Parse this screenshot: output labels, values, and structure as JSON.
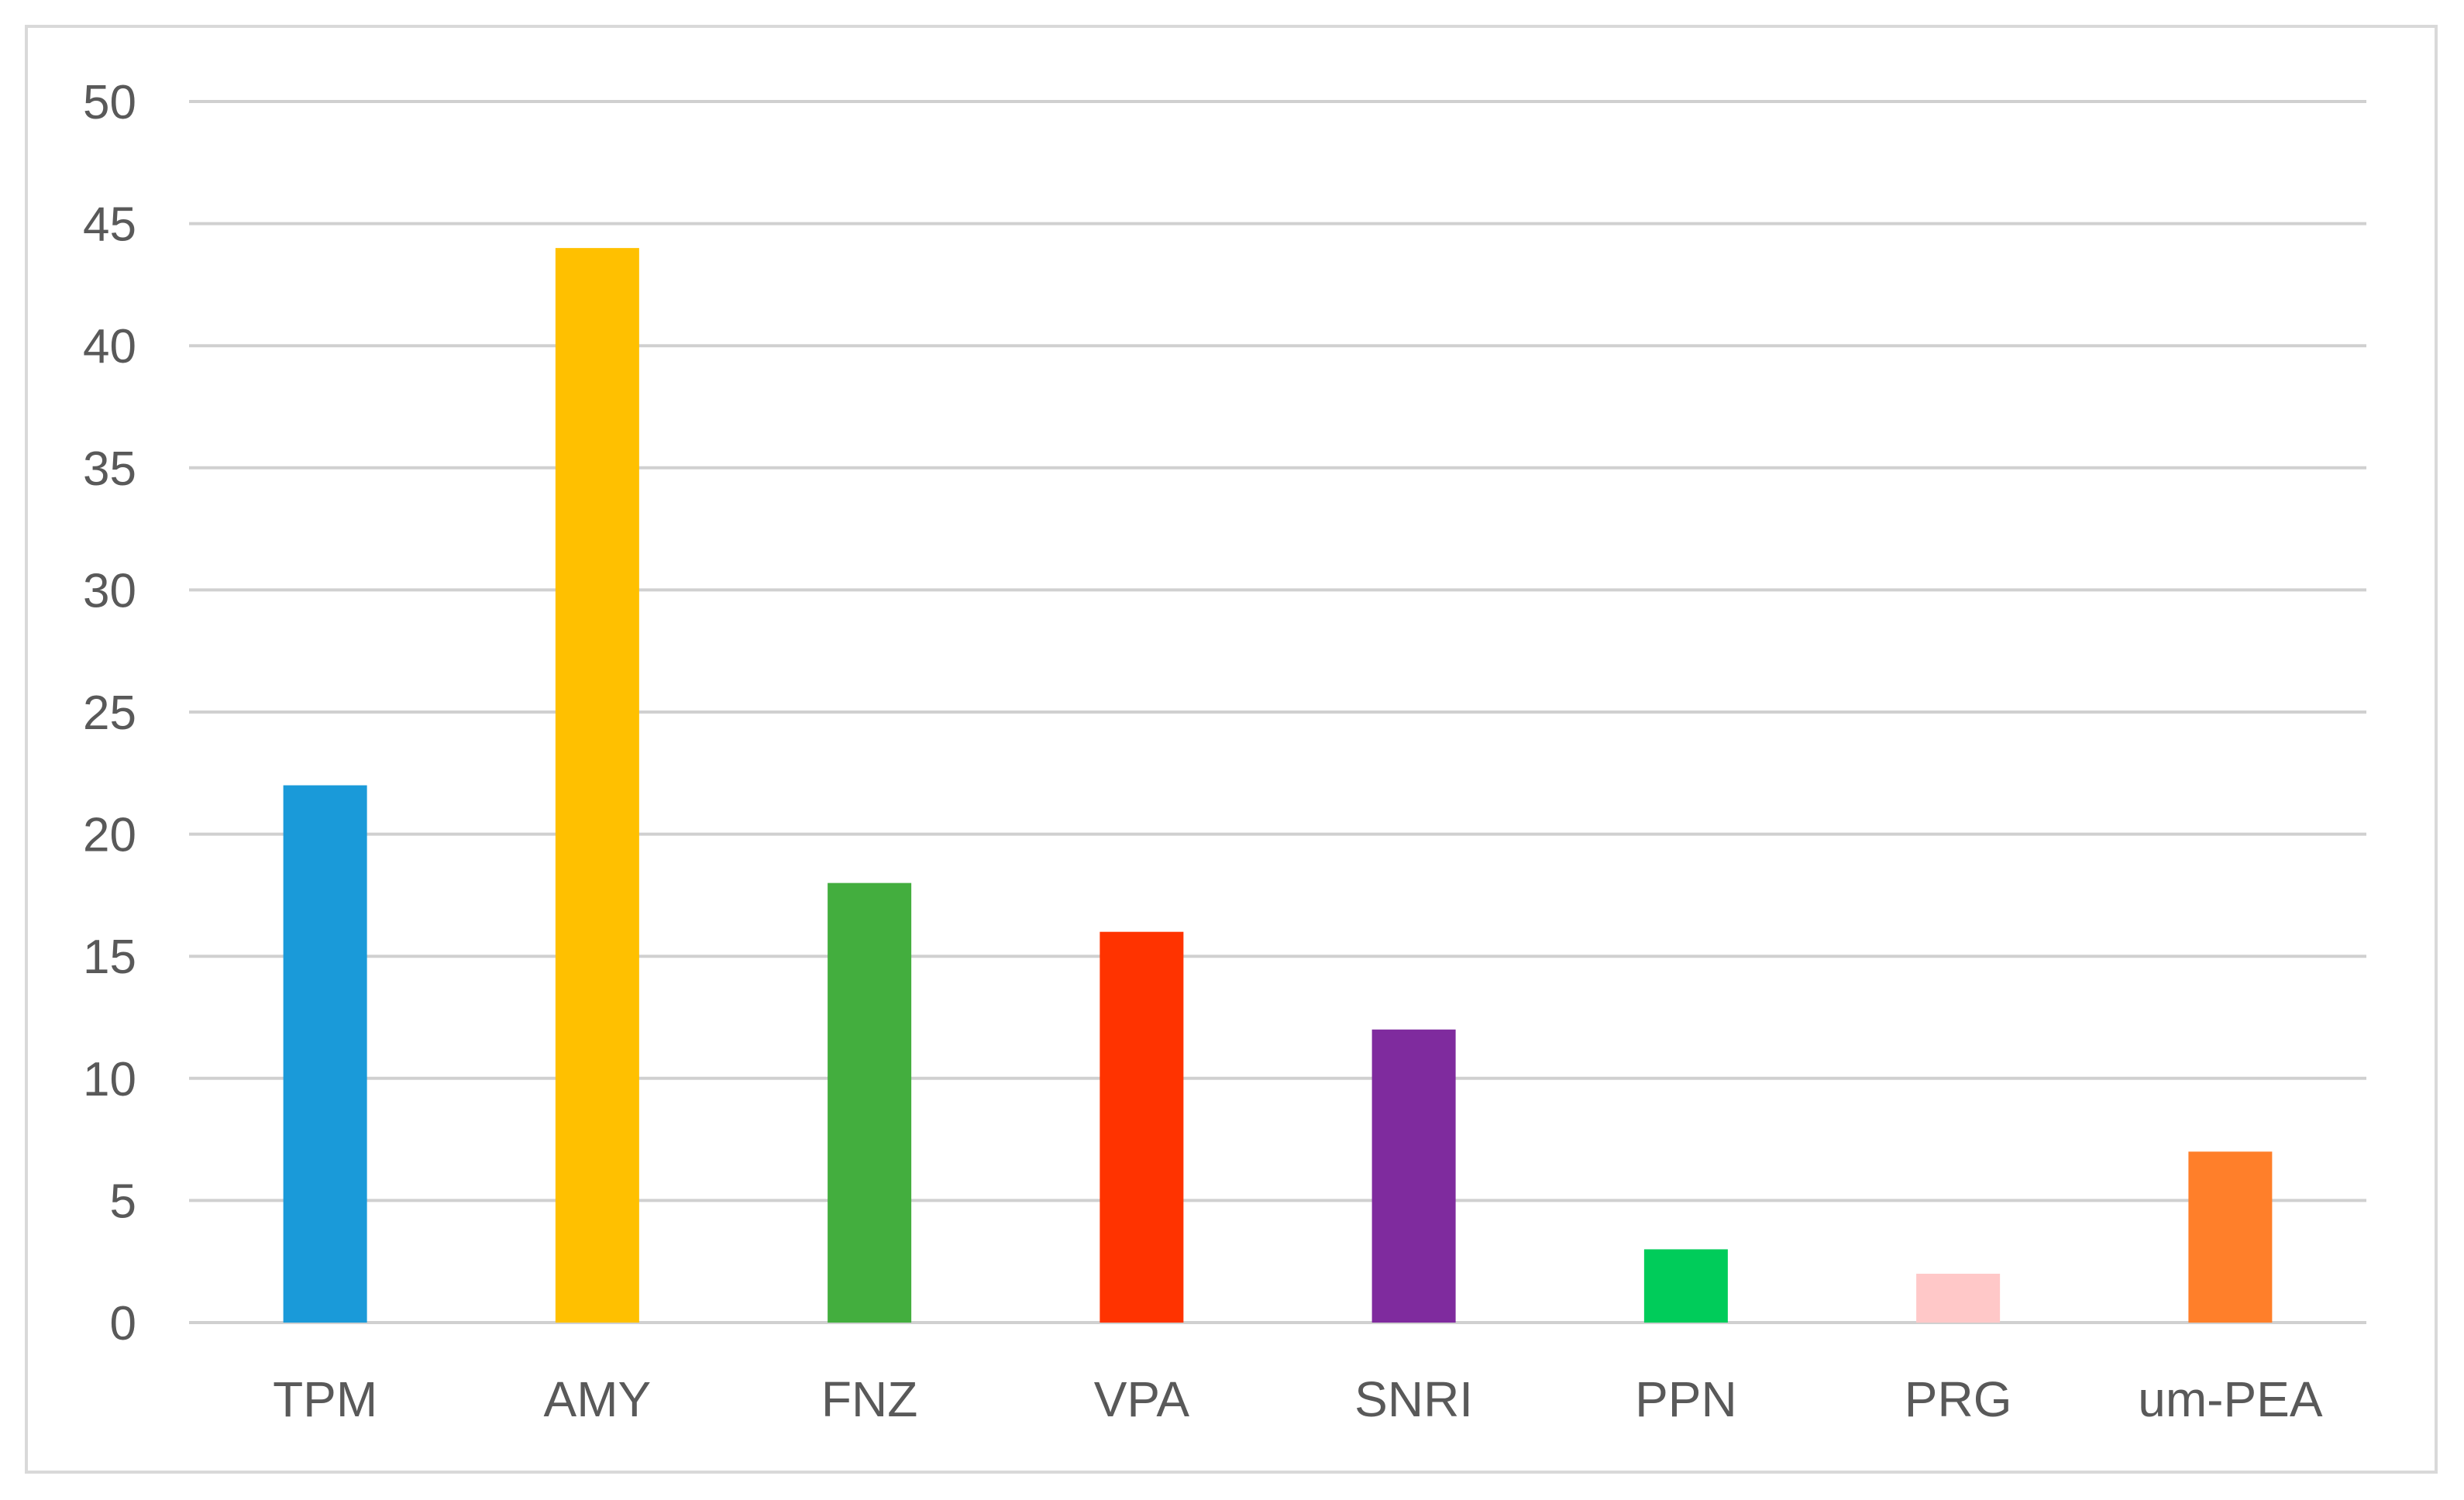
{
  "chart_data": {
    "type": "bar",
    "title": "",
    "xlabel": "",
    "ylabel": "",
    "categories": [
      "TPM",
      "AMY",
      "FNZ",
      "VPA",
      "SNRI",
      "PPN",
      "PRG",
      "um-PEA"
    ],
    "values": [
      22,
      44,
      18,
      16,
      12,
      3,
      2,
      7
    ],
    "colors": [
      "#1a9ad9",
      "#ffc000",
      "#43ae3e",
      "#ff3300",
      "#7f2b9e",
      "#00cc5a",
      "#ffc8c8",
      "#ff7f2a"
    ],
    "ylim": [
      0,
      50
    ],
    "yticks": [
      "0",
      "5",
      "10",
      "15",
      "20",
      "25",
      "30",
      "35",
      "40",
      "45",
      "50"
    ],
    "grid": true,
    "legend": "none"
  }
}
